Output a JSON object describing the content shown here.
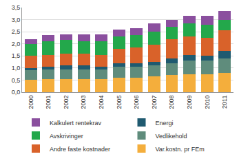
{
  "chart_data": {
    "type": "bar",
    "stacked": true,
    "grid": true,
    "legend": "bottom",
    "categories": [
      "2000",
      "2001",
      "2002",
      "2003",
      "2004",
      "2005",
      "2006",
      "2007",
      "2008",
      "2009",
      "2010",
      "2011"
    ],
    "series": [
      {
        "name": "Var.kostn. pr FEm",
        "color": "#f4ae3c",
        "values": [
          0.5,
          0.55,
          0.55,
          0.55,
          0.55,
          0.6,
          0.6,
          0.65,
          0.7,
          0.75,
          0.75,
          0.8
        ]
      },
      {
        "name": "Vedlikehold",
        "color": "#5f8c7c",
        "values": [
          0.4,
          0.4,
          0.4,
          0.4,
          0.4,
          0.45,
          0.45,
          0.45,
          0.5,
          0.55,
          0.55,
          0.6
        ]
      },
      {
        "name": "Energi",
        "color": "#1f5a70",
        "values": [
          0.1,
          0.1,
          0.15,
          0.15,
          0.1,
          0.15,
          0.15,
          0.15,
          0.2,
          0.25,
          0.2,
          0.3
        ]
      },
      {
        "name": "Andre faste kostnader",
        "color": "#d9622a",
        "values": [
          0.5,
          0.5,
          0.5,
          0.5,
          0.5,
          0.6,
          0.65,
          0.7,
          0.8,
          0.75,
          0.75,
          0.85
        ]
      },
      {
        "name": "Avskrivinger",
        "color": "#23a84b",
        "values": [
          0.5,
          0.55,
          0.55,
          0.5,
          0.55,
          0.5,
          0.5,
          0.55,
          0.5,
          0.55,
          0.55,
          0.45
        ]
      },
      {
        "name": "Kalkulert rentekrav",
        "color": "#8a4f9e",
        "values": [
          0.2,
          0.25,
          0.25,
          0.3,
          0.3,
          0.3,
          0.3,
          0.35,
          0.3,
          0.3,
          0.35,
          0.35
        ]
      }
    ],
    "ylim": [
      0,
      3.5
    ],
    "yticks": [
      {
        "value": 0,
        "label": "0,0"
      },
      {
        "value": 0.5,
        "label": "0,5"
      },
      {
        "value": 1,
        "label": "1,0"
      },
      {
        "value": 1.5,
        "label": "1,5"
      },
      {
        "value": 2,
        "label": "2,0"
      },
      {
        "value": 2.5,
        "label": "2,5"
      },
      {
        "value": 3,
        "label": "3,0"
      },
      {
        "value": 3.5,
        "label": "3,5"
      }
    ]
  }
}
